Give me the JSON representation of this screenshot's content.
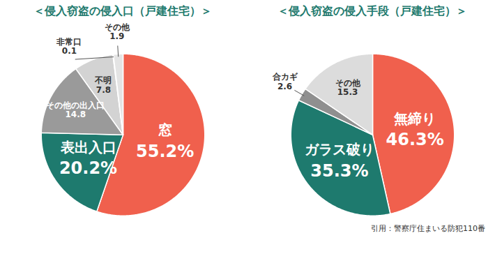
{
  "chart_data": [
    {
      "type": "pie",
      "title": "＜侵入窃盗の侵入口（戸建住宅）＞",
      "categories": [
        "窓",
        "表出入口",
        "その他の出入口",
        "不明",
        "非常口",
        "その他"
      ],
      "values": [
        55.2,
        20.2,
        14.8,
        7.8,
        0.1,
        1.9
      ],
      "value_labels": [
        "55.2%",
        "20.2%",
        "14.8",
        "7.8",
        "0.1",
        "1.9"
      ],
      "colors": [
        "#f0604d",
        "#1e7a6e",
        "#9a9a9a",
        "#d3d3d3",
        "#bdbdbd",
        "#e4e4e4"
      ],
      "data_labels": true
    },
    {
      "type": "pie",
      "title": "＜侵入窃盗の侵入手段（戸建住宅）＞",
      "categories": [
        "無締り",
        "ガラス破り",
        "合カギ",
        "その他"
      ],
      "values": [
        46.3,
        35.3,
        2.6,
        15.3
      ],
      "value_labels": [
        "46.3%",
        "35.3%",
        "2.6",
        "15.3"
      ],
      "colors": [
        "#f0604d",
        "#1e7a6e",
        "#8f8f8f",
        "#dcdcdc"
      ],
      "data_labels": true
    }
  ],
  "caption": "引用：警察庁住まいる防犯110番"
}
